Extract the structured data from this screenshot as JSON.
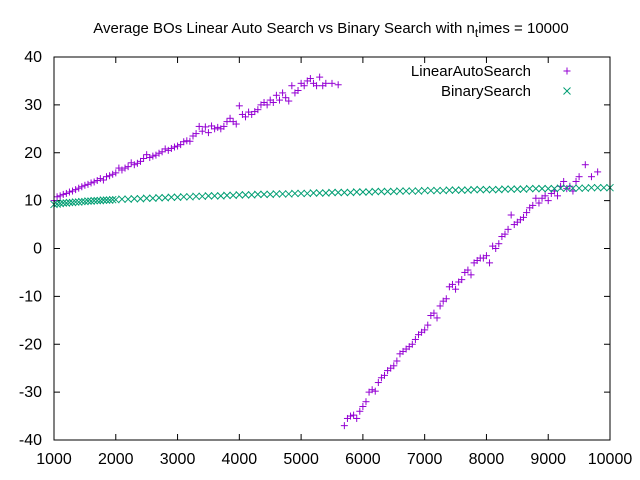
{
  "chart_data": {
    "type": "scatter",
    "title_main": "Average BOs Linear Auto Search vs Binary Search with n",
    "title_sub": "t",
    "title_tail": "imes = 10000",
    "xlim": [
      1000,
      10000
    ],
    "ylim": [
      -40,
      40
    ],
    "xticks": [
      "1000",
      "2000",
      "3000",
      "4000",
      "5000",
      "6000",
      "7000",
      "8000",
      "9000",
      "10000"
    ],
    "yticks": [
      "-40",
      "-30",
      "-20",
      "-10",
      "0",
      "10",
      "20",
      "30",
      "40"
    ],
    "legend_position": "top-right",
    "grid": false,
    "series": [
      {
        "name": "LinearAutoSearch",
        "color": "#9400d3",
        "marker": "plus",
        "points": [
          [
            1000,
            10.0
          ],
          [
            1050,
            10.8
          ],
          [
            1100,
            11.0
          ],
          [
            1150,
            11.3
          ],
          [
            1200,
            11.5
          ],
          [
            1250,
            11.8
          ],
          [
            1300,
            12.0
          ],
          [
            1350,
            12.3
          ],
          [
            1400,
            12.6
          ],
          [
            1450,
            12.9
          ],
          [
            1500,
            13.2
          ],
          [
            1550,
            13.4
          ],
          [
            1600,
            13.7
          ],
          [
            1650,
            13.9
          ],
          [
            1700,
            14.2
          ],
          [
            1750,
            14.6
          ],
          [
            1800,
            14.3
          ],
          [
            1850,
            15.0
          ],
          [
            1900,
            15.2
          ],
          [
            1950,
            15.5
          ],
          [
            2000,
            15.8
          ],
          [
            2050,
            16.8
          ],
          [
            2100,
            16.4
          ],
          [
            2150,
            16.8
          ],
          [
            2200,
            17.1
          ],
          [
            2250,
            17.9
          ],
          [
            2300,
            17.5
          ],
          [
            2350,
            17.8
          ],
          [
            2400,
            18.2
          ],
          [
            2450,
            18.8
          ],
          [
            2500,
            19.6
          ],
          [
            2550,
            19.0
          ],
          [
            2600,
            19.3
          ],
          [
            2650,
            19.5
          ],
          [
            2700,
            19.9
          ],
          [
            2750,
            20.2
          ],
          [
            2800,
            20.8
          ],
          [
            2850,
            20.5
          ],
          [
            2900,
            20.9
          ],
          [
            2950,
            21.2
          ],
          [
            3000,
            21.4
          ],
          [
            3050,
            21.7
          ],
          [
            3100,
            22.3
          ],
          [
            3150,
            22.5
          ],
          [
            3200,
            22.4
          ],
          [
            3250,
            23.5
          ],
          [
            3300,
            24.0
          ],
          [
            3350,
            25.5
          ],
          [
            3400,
            24.5
          ],
          [
            3450,
            25.4
          ],
          [
            3500,
            24.2
          ],
          [
            3550,
            25.6
          ],
          [
            3600,
            25.0
          ],
          [
            3650,
            25.3
          ],
          [
            3700,
            25.0
          ],
          [
            3750,
            25.5
          ],
          [
            3800,
            26.5
          ],
          [
            3850,
            27.2
          ],
          [
            3900,
            26.5
          ],
          [
            3950,
            26.0
          ],
          [
            4000,
            29.8
          ],
          [
            4050,
            28.0
          ],
          [
            4100,
            27.5
          ],
          [
            4150,
            28.5
          ],
          [
            4200,
            28.0
          ],
          [
            4250,
            28.6
          ],
          [
            4300,
            29.0
          ],
          [
            4350,
            30.0
          ],
          [
            4400,
            30.5
          ],
          [
            4450,
            30.0
          ],
          [
            4500,
            31.0
          ],
          [
            4550,
            30.5
          ],
          [
            4600,
            32.0
          ],
          [
            4650,
            31.0
          ],
          [
            4700,
            32.5
          ],
          [
            4750,
            31.5
          ],
          [
            4800,
            30.8
          ],
          [
            4850,
            34.0
          ],
          [
            4900,
            32.5
          ],
          [
            4950,
            33.0
          ],
          [
            5000,
            34.5
          ],
          [
            5050,
            34.0
          ],
          [
            5100,
            35.0
          ],
          [
            5150,
            35.5
          ],
          [
            5200,
            34.5
          ],
          [
            5250,
            34.0
          ],
          [
            5300,
            35.8
          ],
          [
            5350,
            34.0
          ],
          [
            5400,
            34.5
          ],
          [
            5500,
            34.5
          ],
          [
            5600,
            34.2
          ],
          [
            5700,
            -37.0
          ],
          [
            5750,
            -35.5
          ],
          [
            5800,
            -35.0
          ],
          [
            5850,
            -34.8
          ],
          [
            5900,
            -35.5
          ],
          [
            5950,
            -34.0
          ],
          [
            6000,
            -33.0
          ],
          [
            6050,
            -32.0
          ],
          [
            6100,
            -30.0
          ],
          [
            6150,
            -29.5
          ],
          [
            6200,
            -29.8
          ],
          [
            6250,
            -28.0
          ],
          [
            6300,
            -27.0
          ],
          [
            6350,
            -26.5
          ],
          [
            6400,
            -25.5
          ],
          [
            6450,
            -25.0
          ],
          [
            6500,
            -24.5
          ],
          [
            6550,
            -23.5
          ],
          [
            6600,
            -22.0
          ],
          [
            6650,
            -21.5
          ],
          [
            6700,
            -21.0
          ],
          [
            6750,
            -20.5
          ],
          [
            6800,
            -20.0
          ],
          [
            6850,
            -19.0
          ],
          [
            6900,
            -18.0
          ],
          [
            6950,
            -17.5
          ],
          [
            7000,
            -17.0
          ],
          [
            7050,
            -16.0
          ],
          [
            7100,
            -14.0
          ],
          [
            7150,
            -13.5
          ],
          [
            7200,
            -14.5
          ],
          [
            7250,
            -12.0
          ],
          [
            7300,
            -11.0
          ],
          [
            7350,
            -10.5
          ],
          [
            7400,
            -8.0
          ],
          [
            7450,
            -7.5
          ],
          [
            7500,
            -8.5
          ],
          [
            7550,
            -7.0
          ],
          [
            7600,
            -6.5
          ],
          [
            7650,
            -5.0
          ],
          [
            7700,
            -4.5
          ],
          [
            7750,
            -5.5
          ],
          [
            7800,
            -3.0
          ],
          [
            7850,
            -2.5
          ],
          [
            7900,
            -2.0
          ],
          [
            7950,
            -2.0
          ],
          [
            8000,
            -1.5
          ],
          [
            8050,
            -3.0
          ],
          [
            8100,
            0.5
          ],
          [
            8150,
            0.0
          ],
          [
            8200,
            1.0
          ],
          [
            8250,
            2.5
          ],
          [
            8300,
            3.0
          ],
          [
            8350,
            4.0
          ],
          [
            8400,
            7.0
          ],
          [
            8450,
            5.0
          ],
          [
            8500,
            5.5
          ],
          [
            8550,
            6.0
          ],
          [
            8600,
            6.5
          ],
          [
            8650,
            7.5
          ],
          [
            8700,
            8.5
          ],
          [
            8750,
            9.0
          ],
          [
            8800,
            10.5
          ],
          [
            8850,
            9.5
          ],
          [
            8900,
            10.5
          ],
          [
            8950,
            11.0
          ],
          [
            9000,
            10.0
          ],
          [
            9050,
            11.5
          ],
          [
            9100,
            12.0
          ],
          [
            9150,
            11.0
          ],
          [
            9200,
            13.0
          ],
          [
            9250,
            14.0
          ],
          [
            9300,
            12.5
          ],
          [
            9350,
            13.0
          ],
          [
            9400,
            12.0
          ],
          [
            9450,
            14.0
          ],
          [
            9500,
            15.0
          ],
          [
            9600,
            17.5
          ],
          [
            9700,
            15.0
          ],
          [
            9800,
            16.0
          ]
        ]
      },
      {
        "name": "BinarySearch",
        "color": "#009e73",
        "marker": "x",
        "points": [
          [
            1000,
            9.2
          ],
          [
            1050,
            9.3
          ],
          [
            1100,
            9.4
          ],
          [
            1150,
            9.5
          ],
          [
            1200,
            9.5
          ],
          [
            1250,
            9.6
          ],
          [
            1300,
            9.6
          ],
          [
            1350,
            9.7
          ],
          [
            1400,
            9.7
          ],
          [
            1450,
            9.8
          ],
          [
            1500,
            9.8
          ],
          [
            1550,
            9.9
          ],
          [
            1600,
            9.9
          ],
          [
            1650,
            10.0
          ],
          [
            1700,
            10.0
          ],
          [
            1750,
            10.0
          ],
          [
            1800,
            10.1
          ],
          [
            1850,
            10.1
          ],
          [
            1900,
            10.1
          ],
          [
            1950,
            10.2
          ],
          [
            2000,
            10.2
          ],
          [
            2100,
            10.3
          ],
          [
            2200,
            10.3
          ],
          [
            2300,
            10.4
          ],
          [
            2400,
            10.4
          ],
          [
            2500,
            10.5
          ],
          [
            2600,
            10.5
          ],
          [
            2700,
            10.6
          ],
          [
            2800,
            10.6
          ],
          [
            2900,
            10.7
          ],
          [
            3000,
            10.7
          ],
          [
            3100,
            10.8
          ],
          [
            3200,
            10.8
          ],
          [
            3300,
            10.9
          ],
          [
            3400,
            10.9
          ],
          [
            3500,
            11.0
          ],
          [
            3600,
            11.0
          ],
          [
            3700,
            11.0
          ],
          [
            3800,
            11.1
          ],
          [
            3900,
            11.1
          ],
          [
            4000,
            11.2
          ],
          [
            4100,
            11.2
          ],
          [
            4200,
            11.2
          ],
          [
            4300,
            11.3
          ],
          [
            4400,
            11.3
          ],
          [
            4500,
            11.3
          ],
          [
            4600,
            11.4
          ],
          [
            4700,
            11.4
          ],
          [
            4800,
            11.4
          ],
          [
            4900,
            11.5
          ],
          [
            5000,
            11.5
          ],
          [
            5100,
            11.5
          ],
          [
            5200,
            11.6
          ],
          [
            5300,
            11.6
          ],
          [
            5400,
            11.6
          ],
          [
            5500,
            11.7
          ],
          [
            5600,
            11.7
          ],
          [
            5700,
            11.7
          ],
          [
            5800,
            11.7
          ],
          [
            5900,
            11.8
          ],
          [
            6000,
            11.8
          ],
          [
            6100,
            11.8
          ],
          [
            6200,
            11.9
          ],
          [
            6300,
            11.9
          ],
          [
            6400,
            11.9
          ],
          [
            6500,
            11.9
          ],
          [
            6600,
            12.0
          ],
          [
            6700,
            12.0
          ],
          [
            6800,
            12.0
          ],
          [
            6900,
            12.0
          ],
          [
            7000,
            12.1
          ],
          [
            7100,
            12.1
          ],
          [
            7200,
            12.1
          ],
          [
            7300,
            12.1
          ],
          [
            7400,
            12.2
          ],
          [
            7500,
            12.2
          ],
          [
            7600,
            12.2
          ],
          [
            7700,
            12.2
          ],
          [
            7800,
            12.3
          ],
          [
            7900,
            12.3
          ],
          [
            8000,
            12.3
          ],
          [
            8100,
            12.3
          ],
          [
            8200,
            12.3
          ],
          [
            8300,
            12.4
          ],
          [
            8400,
            12.4
          ],
          [
            8500,
            12.4
          ],
          [
            8600,
            12.4
          ],
          [
            8700,
            12.5
          ],
          [
            8800,
            12.5
          ],
          [
            8900,
            12.5
          ],
          [
            9000,
            12.5
          ],
          [
            9100,
            12.5
          ],
          [
            9200,
            12.6
          ],
          [
            9300,
            12.6
          ],
          [
            9400,
            12.6
          ],
          [
            9500,
            12.6
          ],
          [
            9600,
            12.6
          ],
          [
            9700,
            12.7
          ],
          [
            9800,
            12.7
          ],
          [
            9900,
            12.7
          ],
          [
            10000,
            12.7
          ]
        ]
      }
    ]
  }
}
